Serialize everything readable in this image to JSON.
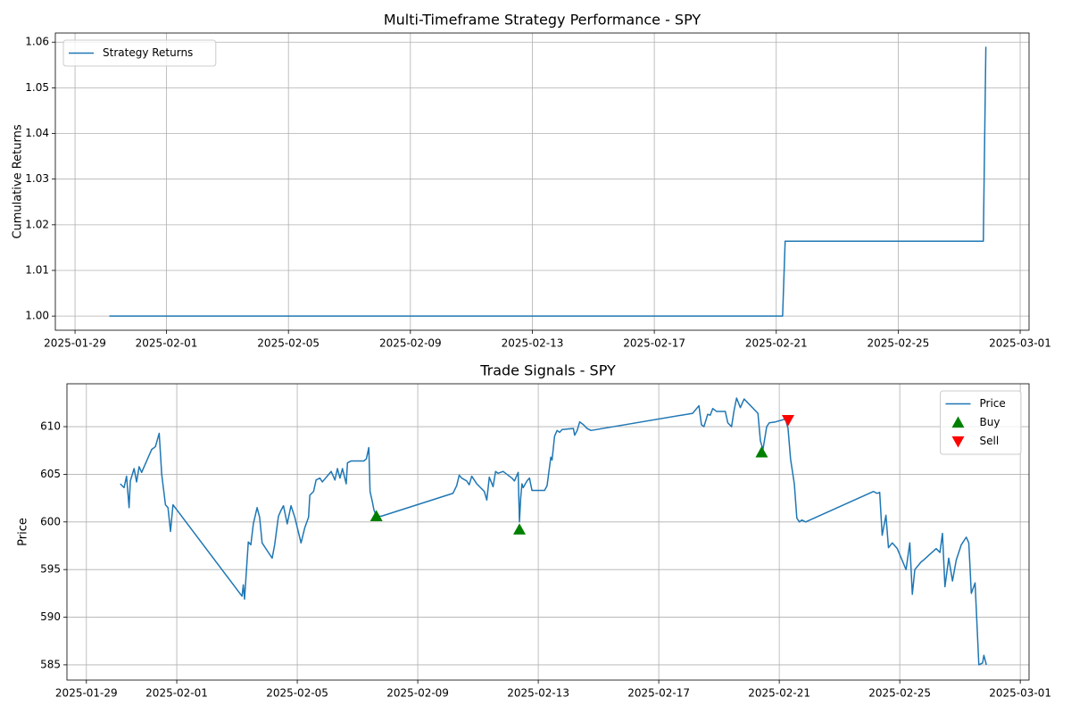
{
  "chart_data": [
    {
      "type": "line",
      "title": "Multi-Timeframe Strategy Performance - SPY",
      "ylabel": "Cumulative Returns",
      "xlim": [
        "2025-01-28T08:30",
        "2025-03-01T07:00"
      ],
      "xticks": [
        "2025-01-29",
        "2025-02-01",
        "2025-02-05",
        "2025-02-09",
        "2025-02-13",
        "2025-02-17",
        "2025-02-21",
        "2025-02-25",
        "2025-03-01"
      ],
      "ylim": [
        0.9969,
        1.062
      ],
      "yticks": [
        {
          "value": 1,
          "label": "1.00"
        },
        1.01,
        1.02,
        1.03,
        1.04,
        1.05,
        1.06
      ],
      "grid": true,
      "legend": "upper left",
      "series": [
        {
          "name": "Strategy Returns",
          "color": "#1f77b4",
          "x": [
            "2025-01-30T03:00",
            "2025-02-21T05:00",
            "2025-02-21T07:00",
            "2025-02-27T19:00",
            "2025-02-27T21:00"
          ],
          "values": [
            1.0,
            1.0,
            1.0164,
            1.0164,
            1.059
          ]
        }
      ]
    },
    {
      "type": "line",
      "title": "Trade Signals - SPY",
      "ylabel": "Price",
      "xlim": [
        "2025-01-28T08:30",
        "2025-03-01T07:00"
      ],
      "xticks": [
        "2025-01-29",
        "2025-02-01",
        "2025-02-05",
        "2025-02-09",
        "2025-02-13",
        "2025-02-17",
        "2025-02-21",
        "2025-02-25",
        "2025-03-01"
      ],
      "ylim": [
        583.4,
        614.5
      ],
      "yticks": [
        585,
        590,
        595,
        600,
        605,
        610
      ],
      "grid": true,
      "legend": "upper right",
      "series": [
        {
          "name": "Price",
          "color": "#1f77b4",
          "x": [
            "2025-01-30T03:00",
            "2025-01-30T06:00",
            "2025-01-30T08:00",
            "2025-01-30T10:00",
            "2025-01-30T11:00",
            "2025-01-30T14:00",
            "2025-01-30T16:00",
            "2025-01-30T18:00",
            "2025-01-30T20:00",
            "2025-01-31T04:00",
            "2025-01-31T07:00",
            "2025-01-31T10:00",
            "2025-01-31T12:00",
            "2025-01-31T15:00",
            "2025-01-31T17:00",
            "2025-01-31T19:00",
            "2025-01-31T21:00",
            "2025-02-03T04:00",
            "2025-02-03T05:00",
            "2025-02-03T06:00",
            "2025-02-03T09:00",
            "2025-02-03T11:00",
            "2025-02-03T13:00",
            "2025-02-03T16:00",
            "2025-02-03T18:00",
            "2025-02-03T20:00",
            "2025-02-04T04:00",
            "2025-02-04T06:00",
            "2025-02-04T09:00",
            "2025-02-04T11:00",
            "2025-02-04T13:00",
            "2025-02-04T16:00",
            "2025-02-04T19:00",
            "2025-02-04T22:00",
            "2025-02-05T03:00",
            "2025-02-05T06:00",
            "2025-02-05T09:00",
            "2025-02-05T10:00",
            "2025-02-05T13:00",
            "2025-02-05T15:00",
            "2025-02-05T18:00",
            "2025-02-05T20:00",
            "2025-02-06T03:00",
            "2025-02-06T06:00",
            "2025-02-06T08:00",
            "2025-02-06T10:00",
            "2025-02-06T12:00",
            "2025-02-06T15:00",
            "2025-02-06T16:00",
            "2025-02-06T19:00",
            "2025-02-07T05:00",
            "2025-02-07T07:00",
            "2025-02-07T09:00",
            "2025-02-07T10:00",
            "2025-02-07T12:00",
            "2025-02-07T13:00",
            "2025-02-07T15:00",
            "2025-02-07T19:00",
            "2025-02-10T04:00",
            "2025-02-10T07:00",
            "2025-02-10T09:00",
            "2025-02-10T11:00",
            "2025-02-10T15:00",
            "2025-02-10T17:00",
            "2025-02-10T19:00",
            "2025-02-10T23:00",
            "2025-02-11T05:00",
            "2025-02-11T07:00",
            "2025-02-11T09:00",
            "2025-02-11T12:00",
            "2025-02-11T14:00",
            "2025-02-11T16:00",
            "2025-02-11T20:00",
            "2025-02-12T03:00",
            "2025-02-12T05:00",
            "2025-02-12T08:00",
            "2025-02-12T09:00",
            "2025-02-12T10:00",
            "2025-02-12T11:00",
            "2025-02-12T12:00",
            "2025-02-12T15:00",
            "2025-02-12T17:00",
            "2025-02-12T19:00",
            "2025-02-13T05:00",
            "2025-02-13T07:00",
            "2025-02-13T10:00",
            "2025-02-13T11:00",
            "2025-02-13T13:00",
            "2025-02-13T15:00",
            "2025-02-13T17:00",
            "2025-02-13T19:00",
            "2025-02-14T04:00",
            "2025-02-14T05:00",
            "2025-02-14T07:00",
            "2025-02-14T09:00",
            "2025-02-14T12:00",
            "2025-02-14T15:00",
            "2025-02-14T18:00",
            "2025-02-18T03:00",
            "2025-02-18T08:00",
            "2025-02-18T10:00",
            "2025-02-18T12:00",
            "2025-02-18T15:00",
            "2025-02-18T17:00",
            "2025-02-18T19:00",
            "2025-02-18T22:00",
            "2025-02-19T05:00",
            "2025-02-19T07:00",
            "2025-02-19T10:00",
            "2025-02-19T12:00",
            "2025-02-19T14:00",
            "2025-02-19T17:00",
            "2025-02-19T20:00",
            "2025-02-20T07:00",
            "2025-02-20T09:00",
            "2025-02-20T11:00",
            "2025-02-20T14:00",
            "2025-02-20T16:00",
            "2025-02-20T21:00",
            "2025-02-21T05:00",
            "2025-02-21T07:00",
            "2025-02-21T09:00",
            "2025-02-21T12:00",
            "2025-02-21T14:00",
            "2025-02-21T16:00",
            "2025-02-21T18:00",
            "2025-02-21T21:00",
            "2025-02-24T03:00",
            "2025-02-24T06:00",
            "2025-02-24T08:00",
            "2025-02-24T10:00",
            "2025-02-24T13:00",
            "2025-02-24T15:00",
            "2025-02-24T18:00",
            "2025-02-24T22:00",
            "2025-02-25T05:00",
            "2025-02-25T08:00",
            "2025-02-25T10:00",
            "2025-02-25T12:00",
            "2025-02-25T17:00",
            "2025-02-25T19:00",
            "2025-02-26T05:00",
            "2025-02-26T08:00",
            "2025-02-26T10:00",
            "2025-02-26T12:00",
            "2025-02-26T15:00",
            "2025-02-26T18:00",
            "2025-02-26T21:00",
            "2025-02-27T01:00",
            "2025-02-27T05:00",
            "2025-02-27T07:00",
            "2025-02-27T09:00",
            "2025-02-27T12:00",
            "2025-02-27T15:00",
            "2025-02-27T18:00",
            "2025-02-27T19:00",
            "2025-02-27T21:00"
          ],
          "values": [
            604.0,
            603.6,
            604.8,
            601.5,
            604.3,
            605.6,
            604.2,
            605.8,
            605.2,
            607.6,
            607.9,
            609.3,
            605.0,
            601.8,
            601.5,
            599.0,
            601.8,
            592.2,
            593.4,
            591.9,
            597.9,
            597.6,
            599.8,
            601.5,
            600.5,
            597.8,
            596.2,
            597.6,
            600.6,
            601.2,
            601.7,
            599.8,
            601.7,
            600.5,
            597.8,
            599.4,
            600.5,
            602.8,
            603.2,
            604.4,
            604.6,
            604.2,
            605.3,
            604.4,
            605.6,
            604.6,
            605.6,
            604.0,
            606.2,
            606.4,
            606.4,
            606.6,
            607.8,
            603.2,
            602.0,
            601.3,
            600.6,
            600.6,
            603.0,
            603.8,
            604.9,
            604.6,
            604.3,
            603.9,
            604.8,
            604.0,
            603.2,
            602.3,
            604.7,
            603.7,
            605.3,
            605.1,
            605.3,
            604.6,
            604.3,
            605.2,
            600.0,
            602.5,
            604.0,
            603.6,
            604.3,
            604.6,
            603.3,
            603.3,
            603.8,
            606.8,
            606.5,
            609.0,
            609.6,
            609.4,
            609.7,
            609.8,
            609.1,
            609.6,
            610.5,
            610.2,
            609.8,
            609.6,
            611.4,
            612.2,
            610.2,
            610.0,
            611.3,
            611.2,
            611.9,
            611.6,
            611.6,
            610.4,
            610.0,
            611.7,
            613.0,
            612.0,
            612.9,
            611.4,
            608.5,
            607.6,
            610.0,
            610.4,
            610.5,
            610.8,
            609.8,
            606.6,
            604.0,
            600.4,
            600.0,
            600.2,
            600.0,
            603.2,
            603.0,
            603.1,
            598.6,
            600.7,
            597.3,
            597.8,
            597.2,
            595.0,
            597.8,
            592.4,
            595.0,
            595.8,
            596.0,
            597.2,
            596.8,
            598.8,
            593.2,
            596.2,
            593.8,
            596.0,
            597.6,
            598.4,
            597.8,
            592.5,
            593.6,
            585.0,
            585.2,
            586.0,
            585.0
          ]
        },
        {
          "name": "Buy",
          "color": "#008000",
          "type": "scatter",
          "marker": "triangle-up",
          "x": [
            "2025-02-07T15:00",
            "2025-02-12T09:00",
            "2025-02-20T10:00"
          ],
          "values": [
            600.6,
            599.2,
            607.3
          ]
        },
        {
          "name": "Sell",
          "color": "#ff0000",
          "type": "scatter",
          "marker": "triangle-down",
          "x": [
            "2025-02-21T07:00"
          ],
          "values": [
            610.7
          ]
        }
      ]
    }
  ]
}
